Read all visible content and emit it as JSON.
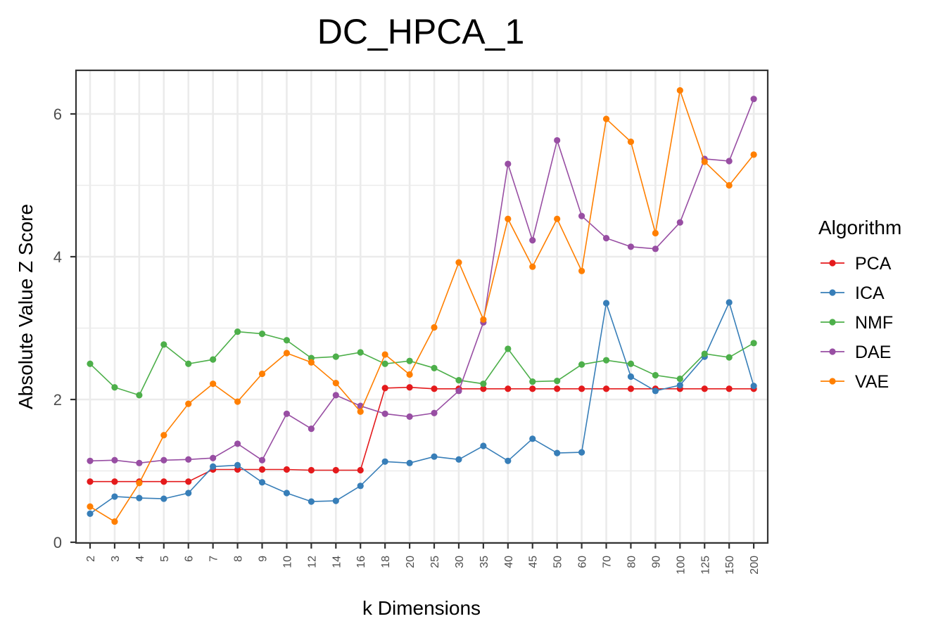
{
  "chart_data": {
    "type": "line",
    "title": "DC_HPCA_1",
    "xlabel": "k Dimensions",
    "ylabel": "Absolute Value Z Score",
    "ylim": [
      0,
      6.6
    ],
    "yticks": [
      "0",
      "2",
      "4",
      "6"
    ],
    "grid": true,
    "legend_title": "Algorithm",
    "legend_position": "right",
    "categories": [
      "2",
      "3",
      "4",
      "5",
      "6",
      "7",
      "8",
      "9",
      "10",
      "12",
      "14",
      "16",
      "18",
      "20",
      "25",
      "30",
      "35",
      "40",
      "45",
      "50",
      "60",
      "70",
      "80",
      "90",
      "100",
      "125",
      "150",
      "200"
    ],
    "series": [
      {
        "name": "PCA",
        "color": "#e41a1c",
        "values": [
          0.85,
          0.85,
          0.85,
          0.85,
          0.85,
          1.02,
          1.02,
          1.02,
          1.02,
          1.01,
          1.01,
          1.01,
          2.16,
          2.17,
          2.15,
          2.15,
          2.15,
          2.15,
          2.15,
          2.15,
          2.15,
          2.15,
          2.15,
          2.15,
          2.15,
          2.15,
          2.15,
          2.15
        ]
      },
      {
        "name": "ICA",
        "color": "#377eb8",
        "values": [
          0.4,
          0.64,
          0.62,
          0.61,
          0.69,
          1.06,
          1.08,
          0.84,
          0.69,
          0.57,
          0.58,
          0.79,
          1.13,
          1.11,
          1.2,
          1.16,
          1.35,
          1.14,
          1.45,
          1.25,
          1.26,
          3.35,
          2.32,
          2.12,
          2.2,
          2.6,
          3.36,
          2.19
        ]
      },
      {
        "name": "NMF",
        "color": "#4daf4a",
        "values": [
          2.5,
          2.17,
          2.06,
          2.77,
          2.5,
          2.56,
          2.95,
          2.92,
          2.83,
          2.58,
          2.6,
          2.66,
          2.5,
          2.54,
          2.44,
          2.27,
          2.22,
          2.71,
          2.25,
          2.26,
          2.49,
          2.55,
          2.5,
          2.34,
          2.29,
          2.64,
          2.59,
          2.79
        ]
      },
      {
        "name": "DAE",
        "color": "#984ea3",
        "values": [
          1.14,
          1.15,
          1.11,
          1.15,
          1.16,
          1.18,
          1.38,
          1.15,
          1.8,
          1.59,
          2.06,
          1.91,
          1.8,
          1.76,
          1.81,
          2.12,
          3.08,
          5.3,
          4.23,
          5.63,
          4.57,
          4.26,
          4.14,
          4.11,
          4.48,
          5.37,
          5.34,
          6.21
        ]
      },
      {
        "name": "VAE",
        "color": "#ff7f00",
        "values": [
          0.5,
          0.29,
          0.83,
          1.5,
          1.94,
          2.22,
          1.97,
          2.36,
          2.65,
          2.52,
          2.23,
          1.83,
          2.63,
          2.35,
          3.01,
          3.92,
          3.12,
          4.53,
          3.86,
          4.53,
          3.8,
          5.93,
          5.61,
          4.33,
          6.33,
          5.33,
          5.0,
          5.43
        ]
      }
    ]
  }
}
